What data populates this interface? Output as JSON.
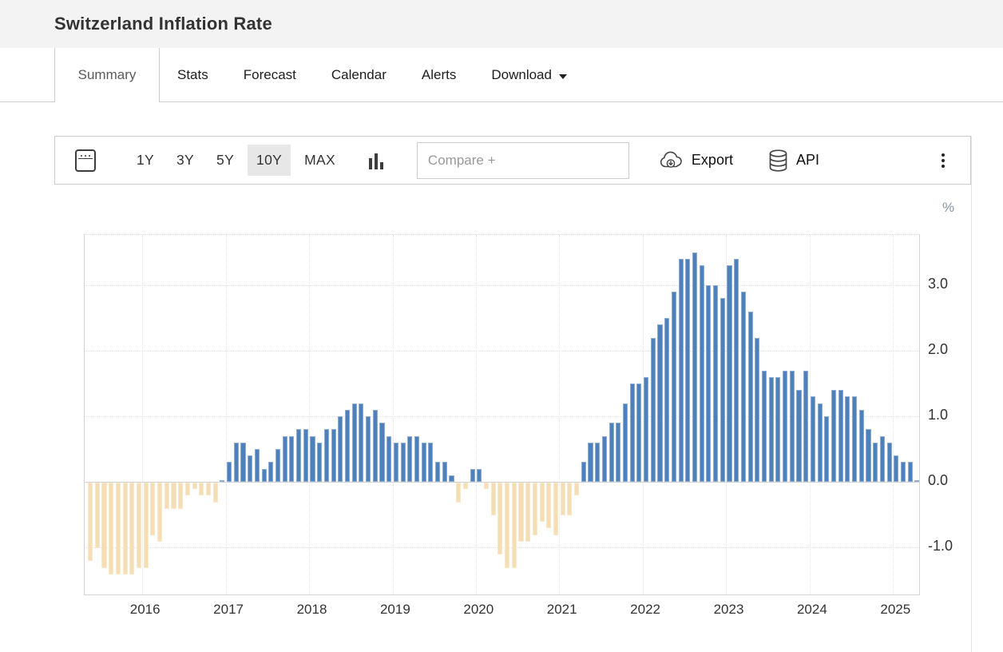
{
  "header": {
    "title": "Switzerland Inflation Rate"
  },
  "tabs": [
    {
      "label": "Summary",
      "active": true
    },
    {
      "label": "Stats"
    },
    {
      "label": "Forecast"
    },
    {
      "label": "Calendar"
    },
    {
      "label": "Alerts"
    },
    {
      "label": "Download",
      "has_dropdown": true
    }
  ],
  "toolbar": {
    "ranges": [
      "1Y",
      "3Y",
      "5Y",
      "10Y",
      "MAX"
    ],
    "selected_range": "10Y",
    "compare_placeholder": "Compare +",
    "export_label": "Export",
    "api_label": "API",
    "icons": [
      "calendar-icon",
      "column-chart-icon",
      "cloud-download-icon",
      "database-icon",
      "kebab-menu-icon"
    ]
  },
  "chart_data": {
    "type": "bar",
    "title": "Switzerland Inflation Rate",
    "unit": "%",
    "frequency": "monthly",
    "start_month": "2015-05",
    "end_month": "2025-04",
    "x_tick_labels": [
      "2016",
      "2017",
      "2018",
      "2019",
      "2020",
      "2021",
      "2022",
      "2023",
      "2024",
      "2025"
    ],
    "y_ticks": [
      {
        "label": "3.0",
        "value": 3.0
      },
      {
        "label": "2.0",
        "value": 2.0
      },
      {
        "label": "1.0",
        "value": 1.0
      },
      {
        "label": "0.0",
        "value": 0.0
      },
      {
        "label": "-1.0",
        "value": -1.0
      }
    ],
    "ylim": [
      -1.75,
      3.77
    ],
    "grid": true,
    "legend": false,
    "colors": {
      "positive": "#4e80bc",
      "negative": "#f5deb3"
    },
    "series": [
      {
        "name": "Inflation Rate YoY (%)",
        "values": [
          -1.2,
          -1.0,
          -1.3,
          -1.4,
          -1.4,
          -1.4,
          -1.4,
          -1.3,
          -1.3,
          -0.8,
          -0.9,
          -0.4,
          -0.4,
          -0.4,
          -0.2,
          -0.1,
          -0.2,
          -0.2,
          -0.3,
          0.0,
          0.3,
          0.6,
          0.6,
          0.4,
          0.5,
          0.2,
          0.3,
          0.5,
          0.7,
          0.7,
          0.8,
          0.8,
          0.7,
          0.6,
          0.8,
          0.8,
          1.0,
          1.1,
          1.2,
          1.2,
          1.0,
          1.1,
          0.9,
          0.7,
          0.6,
          0.6,
          0.7,
          0.7,
          0.6,
          0.6,
          0.3,
          0.3,
          0.1,
          -0.3,
          -0.1,
          0.2,
          0.2,
          -0.1,
          -0.5,
          -1.1,
          -1.3,
          -1.3,
          -0.9,
          -0.9,
          -0.8,
          -0.6,
          -0.7,
          -0.8,
          -0.5,
          -0.5,
          -0.2,
          0.3,
          0.6,
          0.6,
          0.7,
          0.9,
          0.9,
          1.2,
          1.5,
          1.5,
          1.6,
          2.2,
          2.4,
          2.5,
          2.9,
          3.4,
          3.4,
          3.5,
          3.3,
          3.0,
          3.0,
          2.8,
          3.3,
          3.4,
          2.9,
          2.6,
          2.2,
          1.7,
          1.6,
          1.6,
          1.7,
          1.7,
          1.4,
          1.7,
          1.3,
          1.2,
          1.0,
          1.4,
          1.4,
          1.3,
          1.3,
          1.1,
          0.8,
          0.6,
          0.7,
          0.6,
          0.4,
          0.3,
          0.3,
          0.0
        ]
      }
    ]
  }
}
